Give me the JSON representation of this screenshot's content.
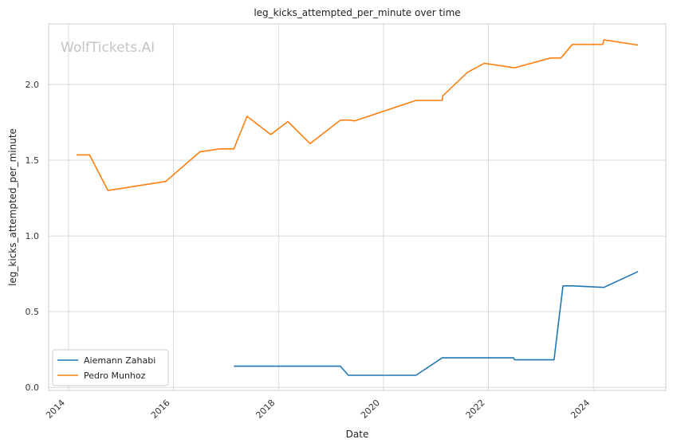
{
  "chart_data": {
    "type": "line",
    "title": "leg_kicks_attempted_per_minute over time",
    "xlabel": "Date",
    "ylabel": "leg_kicks_attempted_per_minute",
    "watermark": "WolfTickets.AI",
    "xlim": [
      2013.62,
      2025.38
    ],
    "ylim": [
      -0.02,
      2.4
    ],
    "x_ticks": [
      {
        "value": 2014,
        "label": "2014"
      },
      {
        "value": 2016,
        "label": "2016"
      },
      {
        "value": 2018,
        "label": "2018"
      },
      {
        "value": 2020,
        "label": "2020"
      },
      {
        "value": 2022,
        "label": "2022"
      },
      {
        "value": 2024,
        "label": "2024"
      }
    ],
    "y_ticks": [
      {
        "value": 0.0,
        "label": "0.0"
      },
      {
        "value": 0.5,
        "label": "0.5"
      },
      {
        "value": 1.0,
        "label": "1.0"
      },
      {
        "value": 1.5,
        "label": "1.5"
      },
      {
        "value": 2.0,
        "label": "2.0"
      }
    ],
    "grid": true,
    "legend_position": "lower-left",
    "series": [
      {
        "name": "Aiemann Zahabi",
        "color": "#1f77b4",
        "points": [
          [
            2017.15,
            0.14
          ],
          [
            2019.18,
            0.14
          ],
          [
            2019.33,
            0.08
          ],
          [
            2020.62,
            0.08
          ],
          [
            2021.12,
            0.195
          ],
          [
            2022.48,
            0.195
          ],
          [
            2022.5,
            0.182
          ],
          [
            2023.25,
            0.182
          ],
          [
            2023.42,
            0.67
          ],
          [
            2023.62,
            0.67
          ],
          [
            2024.2,
            0.66
          ],
          [
            2024.85,
            0.765
          ]
        ]
      },
      {
        "name": "Pedro Munhoz",
        "color": "#ff7f0e",
        "points": [
          [
            2014.15,
            1.535
          ],
          [
            2014.4,
            1.535
          ],
          [
            2014.75,
            1.3
          ],
          [
            2015.85,
            1.36
          ],
          [
            2016.5,
            1.555
          ],
          [
            2016.88,
            1.575
          ],
          [
            2017.15,
            1.575
          ],
          [
            2017.4,
            1.79
          ],
          [
            2017.85,
            1.67
          ],
          [
            2018.18,
            1.755
          ],
          [
            2018.6,
            1.61
          ],
          [
            2019.18,
            1.765
          ],
          [
            2019.35,
            1.765
          ],
          [
            2019.45,
            1.76
          ],
          [
            2020.62,
            1.895
          ],
          [
            2021.12,
            1.895
          ],
          [
            2021.13,
            1.925
          ],
          [
            2021.6,
            2.08
          ],
          [
            2021.92,
            2.14
          ],
          [
            2022.5,
            2.11
          ],
          [
            2023.18,
            2.175
          ],
          [
            2023.22,
            2.175
          ],
          [
            2023.38,
            2.175
          ],
          [
            2023.6,
            2.265
          ],
          [
            2024.18,
            2.265
          ],
          [
            2024.2,
            2.295
          ],
          [
            2024.85,
            2.26
          ]
        ]
      }
    ]
  }
}
